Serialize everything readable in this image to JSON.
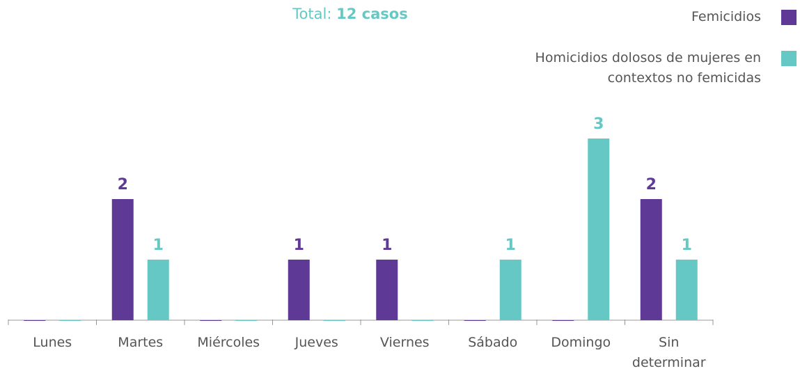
{
  "chart_data": {
    "type": "bar",
    "title": [
      "Total:",
      "12 casos"
    ],
    "categories": [
      "Lunes",
      "Martes",
      "Miércoles",
      "Jueves",
      "Viernes",
      "Sábado",
      "Domingo",
      "Sin determinar"
    ],
    "series": [
      {
        "name": "Femicidios",
        "color": "#5f3996",
        "values": [
          0,
          2,
          0,
          1,
          1,
          0,
          0,
          2
        ]
      },
      {
        "name": "Homicidios dolosos de mujeres en contextos no femicidas",
        "color": "#66c8c4",
        "values": [
          0,
          1,
          0,
          0,
          0,
          1,
          3,
          1
        ]
      }
    ],
    "legend": "top-right"
  }
}
